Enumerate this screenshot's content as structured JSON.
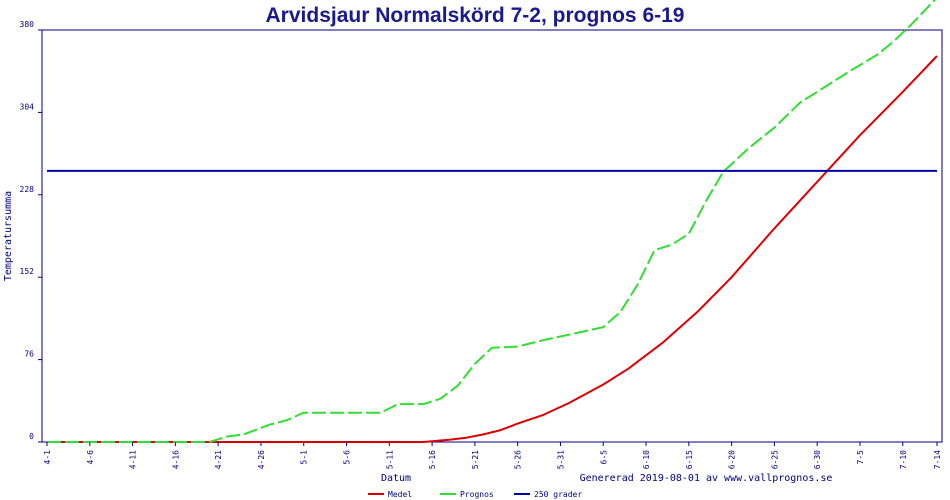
{
  "chart_data": {
    "type": "line",
    "title": "Arvidsjaur Normalskörd 7-2, prognos 6-19",
    "xlabel": "Datum",
    "ylabel": "Temperatursumma",
    "footer": "Genererad 2019-08-01 av www.vallprognos.se",
    "ylim": [
      0,
      380
    ],
    "yticks": [
      0,
      76,
      152,
      228,
      304,
      380
    ],
    "x_range": [
      "2019-04-01",
      "2019-07-14"
    ],
    "xticks": [
      "4-1",
      "4-6",
      "4-11",
      "4-16",
      "4-21",
      "4-26",
      "5-1",
      "5-6",
      "5-11",
      "5-16",
      "5-21",
      "5-26",
      "5-31",
      "6-5",
      "6-10",
      "6-15",
      "6-20",
      "6-25",
      "6-30",
      "7-5",
      "7-10",
      "7-14"
    ],
    "xtick_dates": [
      "2019-04-01",
      "2019-04-06",
      "2019-04-11",
      "2019-04-16",
      "2019-04-21",
      "2019-04-26",
      "2019-05-01",
      "2019-05-06",
      "2019-05-11",
      "2019-05-16",
      "2019-05-21",
      "2019-05-26",
      "2019-05-31",
      "2019-06-05",
      "2019-06-10",
      "2019-06-15",
      "2019-06-20",
      "2019-06-25",
      "2019-06-30",
      "2019-07-05",
      "2019-07-10",
      "2019-07-14"
    ],
    "legend_placement": "bottom",
    "series": [
      {
        "name": "Medel",
        "color": "#dd0000",
        "style": "solid",
        "x": [
          "2019-04-01",
          "2019-04-10",
          "2019-04-20",
          "2019-04-30",
          "2019-05-10",
          "2019-05-15",
          "2019-05-18",
          "2019-05-20",
          "2019-05-22",
          "2019-05-24",
          "2019-05-26",
          "2019-05-29",
          "2019-06-01",
          "2019-06-05",
          "2019-06-08",
          "2019-06-12",
          "2019-06-16",
          "2019-06-20",
          "2019-06-25",
          "2019-06-30",
          "2019-07-05",
          "2019-07-10",
          "2019-07-14"
        ],
        "values": [
          0,
          0,
          0,
          0,
          0,
          0,
          2,
          4,
          7,
          11,
          17,
          25,
          36,
          53,
          68,
          92,
          120,
          152,
          197,
          240,
          283,
          323,
          356
        ]
      },
      {
        "name": "Prognos",
        "color": "#33dd33",
        "style": "dashed",
        "x": [
          "2019-04-01",
          "2019-04-10",
          "2019-04-20",
          "2019-04-22",
          "2019-04-24",
          "2019-04-27",
          "2019-04-29",
          "2019-05-01",
          "2019-05-05",
          "2019-05-10",
          "2019-05-12",
          "2019-05-15",
          "2019-05-17",
          "2019-05-19",
          "2019-05-21",
          "2019-05-23",
          "2019-05-26",
          "2019-05-29",
          "2019-06-01",
          "2019-06-05",
          "2019-06-07",
          "2019-06-09",
          "2019-06-11",
          "2019-06-13",
          "2019-06-15",
          "2019-06-17",
          "2019-06-19",
          "2019-06-22",
          "2019-06-25",
          "2019-06-28",
          "2019-07-01",
          "2019-07-04",
          "2019-07-07",
          "2019-07-09",
          "2019-07-11",
          "2019-07-14"
        ],
        "values": [
          0,
          0,
          0,
          5,
          7,
          16,
          20,
          27,
          27,
          27,
          35,
          35,
          40,
          52,
          72,
          87,
          88,
          94,
          99,
          106,
          120,
          145,
          177,
          182,
          192,
          222,
          249,
          271,
          290,
          313,
          328,
          343,
          357,
          370,
          385,
          410
        ]
      },
      {
        "name": "250 grader",
        "color": "#0000aa",
        "style": "solid",
        "x": [
          "2019-04-01",
          "2019-07-14"
        ],
        "values": [
          250,
          250
        ]
      }
    ]
  }
}
